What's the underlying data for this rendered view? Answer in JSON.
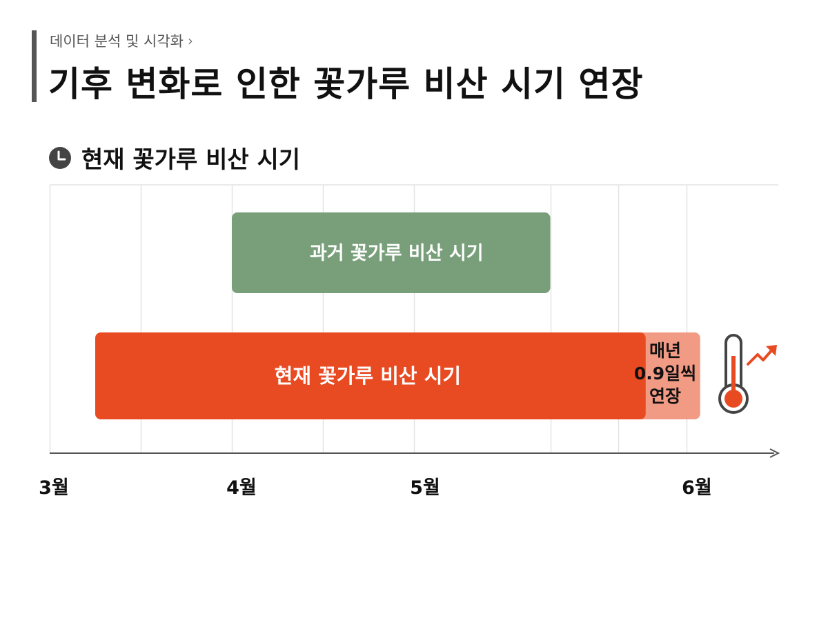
{
  "header": {
    "breadcrumb": "데이터 분석 및 시각화",
    "breadcrumb_chevron": "›",
    "title": "기후 변화로 인한 꽃가루 비산 시기 연장"
  },
  "section": {
    "title": "현재 꽃가루 비산 시기",
    "icon": "clock-icon"
  },
  "annotation": {
    "lines": [
      "매년",
      "0.9일씩",
      "연장"
    ],
    "arrow_icon": "up-arrow-icon",
    "thermometer_icon": "thermometer-rising-icon",
    "trend_icon": "trend-up-icon"
  },
  "chart_data": {
    "type": "bar",
    "orientation": "horizontal-timeline",
    "x_unit": "month",
    "xlim": [
      3,
      6.4
    ],
    "x_ticks": [
      {
        "value": 3,
        "label": "3월"
      },
      {
        "value": 4,
        "label": "4월"
      },
      {
        "value": 5,
        "label": "5월"
      },
      {
        "value": 6,
        "label": "6월"
      }
    ],
    "minor_grid": [
      3.5,
      4.5,
      5.5
    ],
    "grid": true,
    "series": [
      {
        "name": "과거 꽃가루 비산 시기",
        "start": 4.0,
        "end": 5.5,
        "color": "#789f7a"
      },
      {
        "name": "현재 꽃가루 비산 시기",
        "start": 3.25,
        "end": 5.85,
        "color": "#e84a22",
        "extension_start": 5.85,
        "extension_end": 6.05,
        "extension_color": "#f19a84"
      }
    ],
    "colors": {
      "axis": "#555555",
      "grid": "#e4e4e4",
      "arrow": "#e84a22",
      "thermometer_outline": "#444444",
      "thermometer_fill": "#e84a22"
    }
  }
}
